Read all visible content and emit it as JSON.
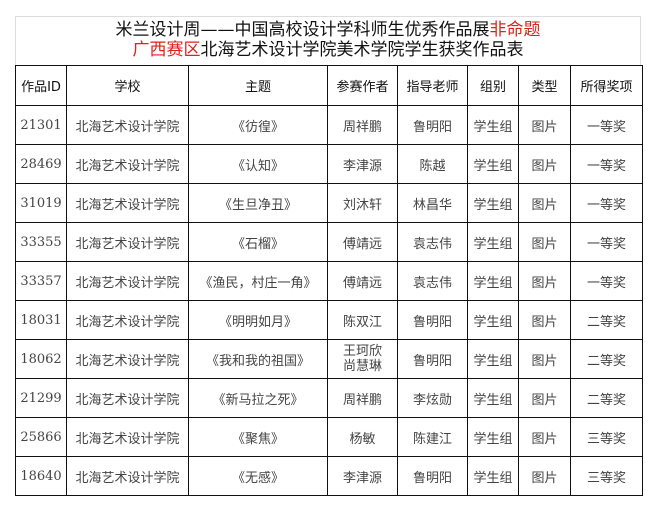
{
  "title": {
    "line1_black": "米兰设计周——中国高校设计学科师生优秀作品展",
    "line1_red": "非命题",
    "line2_red": "广西赛区",
    "line2_black": "北海艺术设计学院美术学院学生获奖作品表"
  },
  "colors": {
    "accent_red": "#e0201b",
    "border": "#111111"
  },
  "table": {
    "headers": [
      "作品ID",
      "学校",
      "主题",
      "参赛作者",
      "指导老师",
      "组别",
      "类型",
      "所得奖项"
    ],
    "rows": [
      [
        "21301",
        "北海艺术设计学院",
        "《彷徨》",
        "周祥鹏",
        "鲁明阳",
        "学生组",
        "图片",
        "一等奖"
      ],
      [
        "28469",
        "北海艺术设计学院",
        "《认知》",
        "李津源",
        "陈越",
        "学生组",
        "图片",
        "一等奖"
      ],
      [
        "31019",
        "北海艺术设计学院",
        "《生旦净丑》",
        "刘沐轩",
        "林昌华",
        "学生组",
        "图片",
        "一等奖"
      ],
      [
        "33355",
        "北海艺术设计学院",
        "《石榴》",
        "傅靖远",
        "袁志伟",
        "学生组",
        "图片",
        "一等奖"
      ],
      [
        "33357",
        "北海艺术设计学院",
        "《渔民，村庄一角》",
        "傅靖远",
        "袁志伟",
        "学生组",
        "图片",
        "一等奖"
      ],
      [
        "18031",
        "北海艺术设计学院",
        "《明明如月》",
        "陈双江",
        "鲁明阳",
        "学生组",
        "图片",
        "二等奖"
      ],
      [
        "18062",
        "北海艺术设计学院",
        "《我和我的祖国》",
        "王珂欣\n尚慧琳",
        "鲁明阳",
        "学生组",
        "图片",
        "二等奖"
      ],
      [
        "21299",
        "北海艺术设计学院",
        "《新马拉之死》",
        "周祥鹏",
        "李炫勋",
        "学生组",
        "图片",
        "二等奖"
      ],
      [
        "25866",
        "北海艺术设计学院",
        "《聚焦》",
        "杨敏",
        "陈建江",
        "学生组",
        "图片",
        "三等奖"
      ],
      [
        "18640",
        "北海艺术设计学院",
        "《无感》",
        "李津源",
        "鲁明阳",
        "学生组",
        "图片",
        "三等奖"
      ]
    ]
  }
}
